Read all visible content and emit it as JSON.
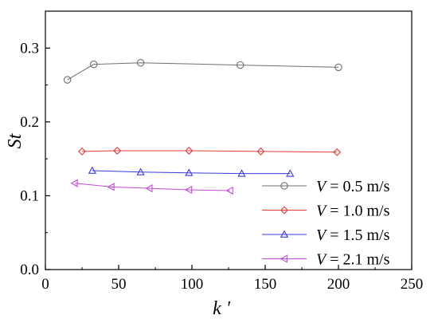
{
  "chart_data": {
    "type": "line",
    "xlabel": "k '",
    "ylabel": "St",
    "xlim": [
      0,
      250
    ],
    "ylim": [
      0.0,
      0.35
    ],
    "xticks": [
      0,
      50,
      100,
      150,
      200,
      250
    ],
    "yticks": [
      0.0,
      0.1,
      0.2,
      0.3
    ],
    "ytick_labels": [
      "0.0",
      "0.1",
      "0.2",
      "0.3"
    ],
    "grid": false,
    "legend_position": "bottom-right",
    "series": [
      {
        "name": "V = 0.5 m/s",
        "legend_var": "V",
        "legend_rest": " = 0.5 m/s",
        "color": "#707070",
        "marker": "circle",
        "x": [
          15,
          33,
          65,
          133,
          200
        ],
        "y": [
          0.257,
          0.278,
          0.28,
          0.277,
          0.274
        ]
      },
      {
        "name": "V = 1.0 m/s",
        "legend_var": "V",
        "legend_rest": " = 1.0 m/s",
        "color": "#e03c3c",
        "marker": "diamond",
        "x": [
          25,
          49,
          98,
          147,
          199
        ],
        "y": [
          0.16,
          0.161,
          0.161,
          0.16,
          0.159
        ]
      },
      {
        "name": "V = 1.5 m/s",
        "legend_var": "V",
        "legend_rest": " = 1.5 m/s",
        "color": "#3a3ae0",
        "marker": "triangle-up",
        "x": [
          32,
          65,
          98,
          134,
          167
        ],
        "y": [
          0.134,
          0.132,
          0.131,
          0.13,
          0.13
        ]
      },
      {
        "name": "V = 2.1 m/s",
        "legend_var": "V",
        "legend_rest": " = 2.1 m/s",
        "color": "#c24dd6",
        "marker": "triangle-left",
        "x": [
          20,
          45,
          71,
          98,
          126
        ],
        "y": [
          0.117,
          0.112,
          0.11,
          0.108,
          0.107
        ]
      }
    ]
  }
}
